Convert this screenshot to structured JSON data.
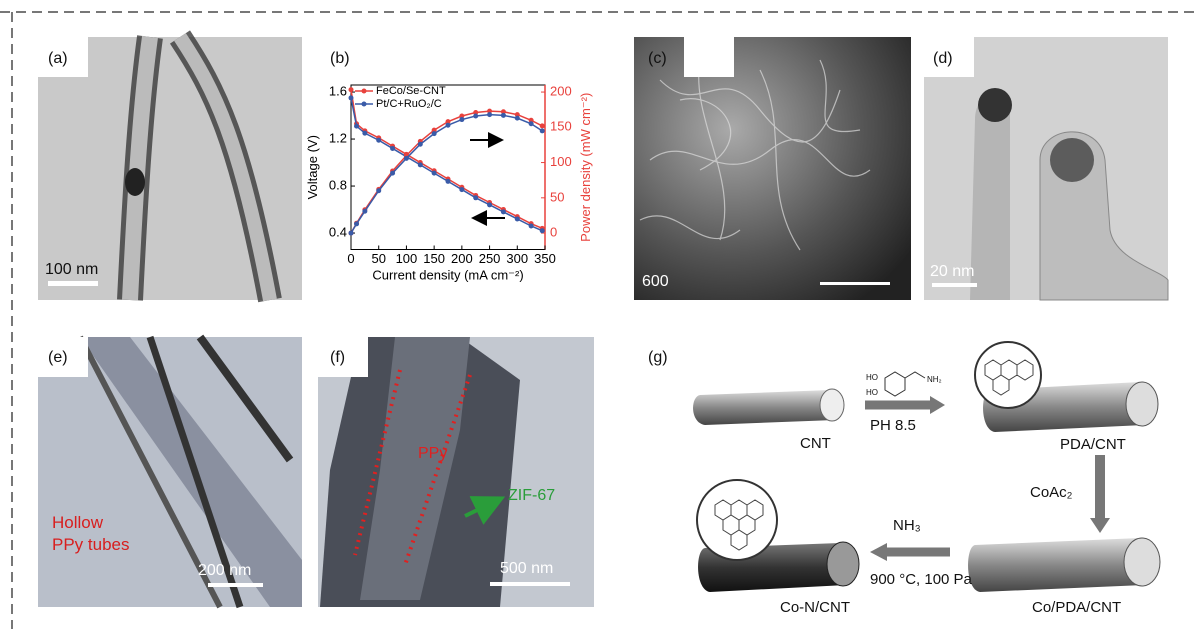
{
  "panels": [
    {
      "label": "(a)",
      "texts": [
        "100 nm"
      ]
    },
    {
      "label": "(b)"
    },
    {
      "label": "(c)",
      "texts": [
        "600"
      ]
    },
    {
      "label": "(d)",
      "texts": [
        "20 nm"
      ]
    },
    {
      "label": "(e)",
      "texts": [
        "Hollow",
        "PPy tubes",
        "200 nm"
      ]
    },
    {
      "label": "(f)",
      "texts": [
        "PPy",
        "ZIF-67",
        "500 nm"
      ]
    },
    {
      "label": "(g)",
      "texts": [
        "CNT",
        "PH 8.5",
        "PDA/CNT",
        "CoAc₂",
        "Co/PDA/CNT",
        "NH₃",
        "900 °C, 100 Pa",
        "Co-N/CNT"
      ]
    }
  ],
  "chart_data": {
    "type": "line",
    "xlabel": "Current density (mA cm⁻²)",
    "ylabel": "Voltage (V)",
    "y2label": "Power density (mW cm⁻²)",
    "x": [
      0,
      10,
      25,
      50,
      75,
      100,
      125,
      150,
      175,
      200,
      225,
      250,
      275,
      300,
      325,
      345
    ],
    "series": [
      {
        "name": "FeCo/Se-CNT",
        "color": "#e8413c",
        "values": [
          1.62,
          1.33,
          1.27,
          1.21,
          1.14,
          1.07,
          1.0,
          0.93,
          0.86,
          0.79,
          0.72,
          0.66,
          0.6,
          0.54,
          0.48,
          0.44
        ]
      },
      {
        "name": "Pt/C+RuO₂/C",
        "color": "#3a5ba8",
        "values": [
          1.55,
          1.31,
          1.25,
          1.19,
          1.12,
          1.05,
          0.98,
          0.91,
          0.84,
          0.77,
          0.7,
          0.64,
          0.58,
          0.52,
          0.46,
          0.42
        ]
      },
      {
        "color": "#e8413c",
        "axis": "y2",
        "values": [
          0,
          14,
          33,
          62,
          88,
          110,
          130,
          146,
          158,
          166,
          171,
          173,
          172,
          168,
          160,
          152
        ]
      },
      {
        "color": "#3a5ba8",
        "axis": "y2",
        "values": [
          0,
          13,
          31,
          60,
          85,
          106,
          126,
          141,
          153,
          161,
          166,
          168,
          167,
          163,
          155,
          145
        ]
      }
    ],
    "xlim": [
      0,
      350
    ],
    "xticks": [
      0,
      50,
      100,
      150,
      200,
      250,
      300,
      350
    ],
    "ylim": [
      0.26,
      1.66
    ],
    "yticks": [
      0.4,
      0.8,
      1.2,
      1.6
    ],
    "y2lim": [
      -23.3,
      210
    ],
    "y2ticks": [
      0,
      50,
      100,
      150,
      200
    ]
  }
}
